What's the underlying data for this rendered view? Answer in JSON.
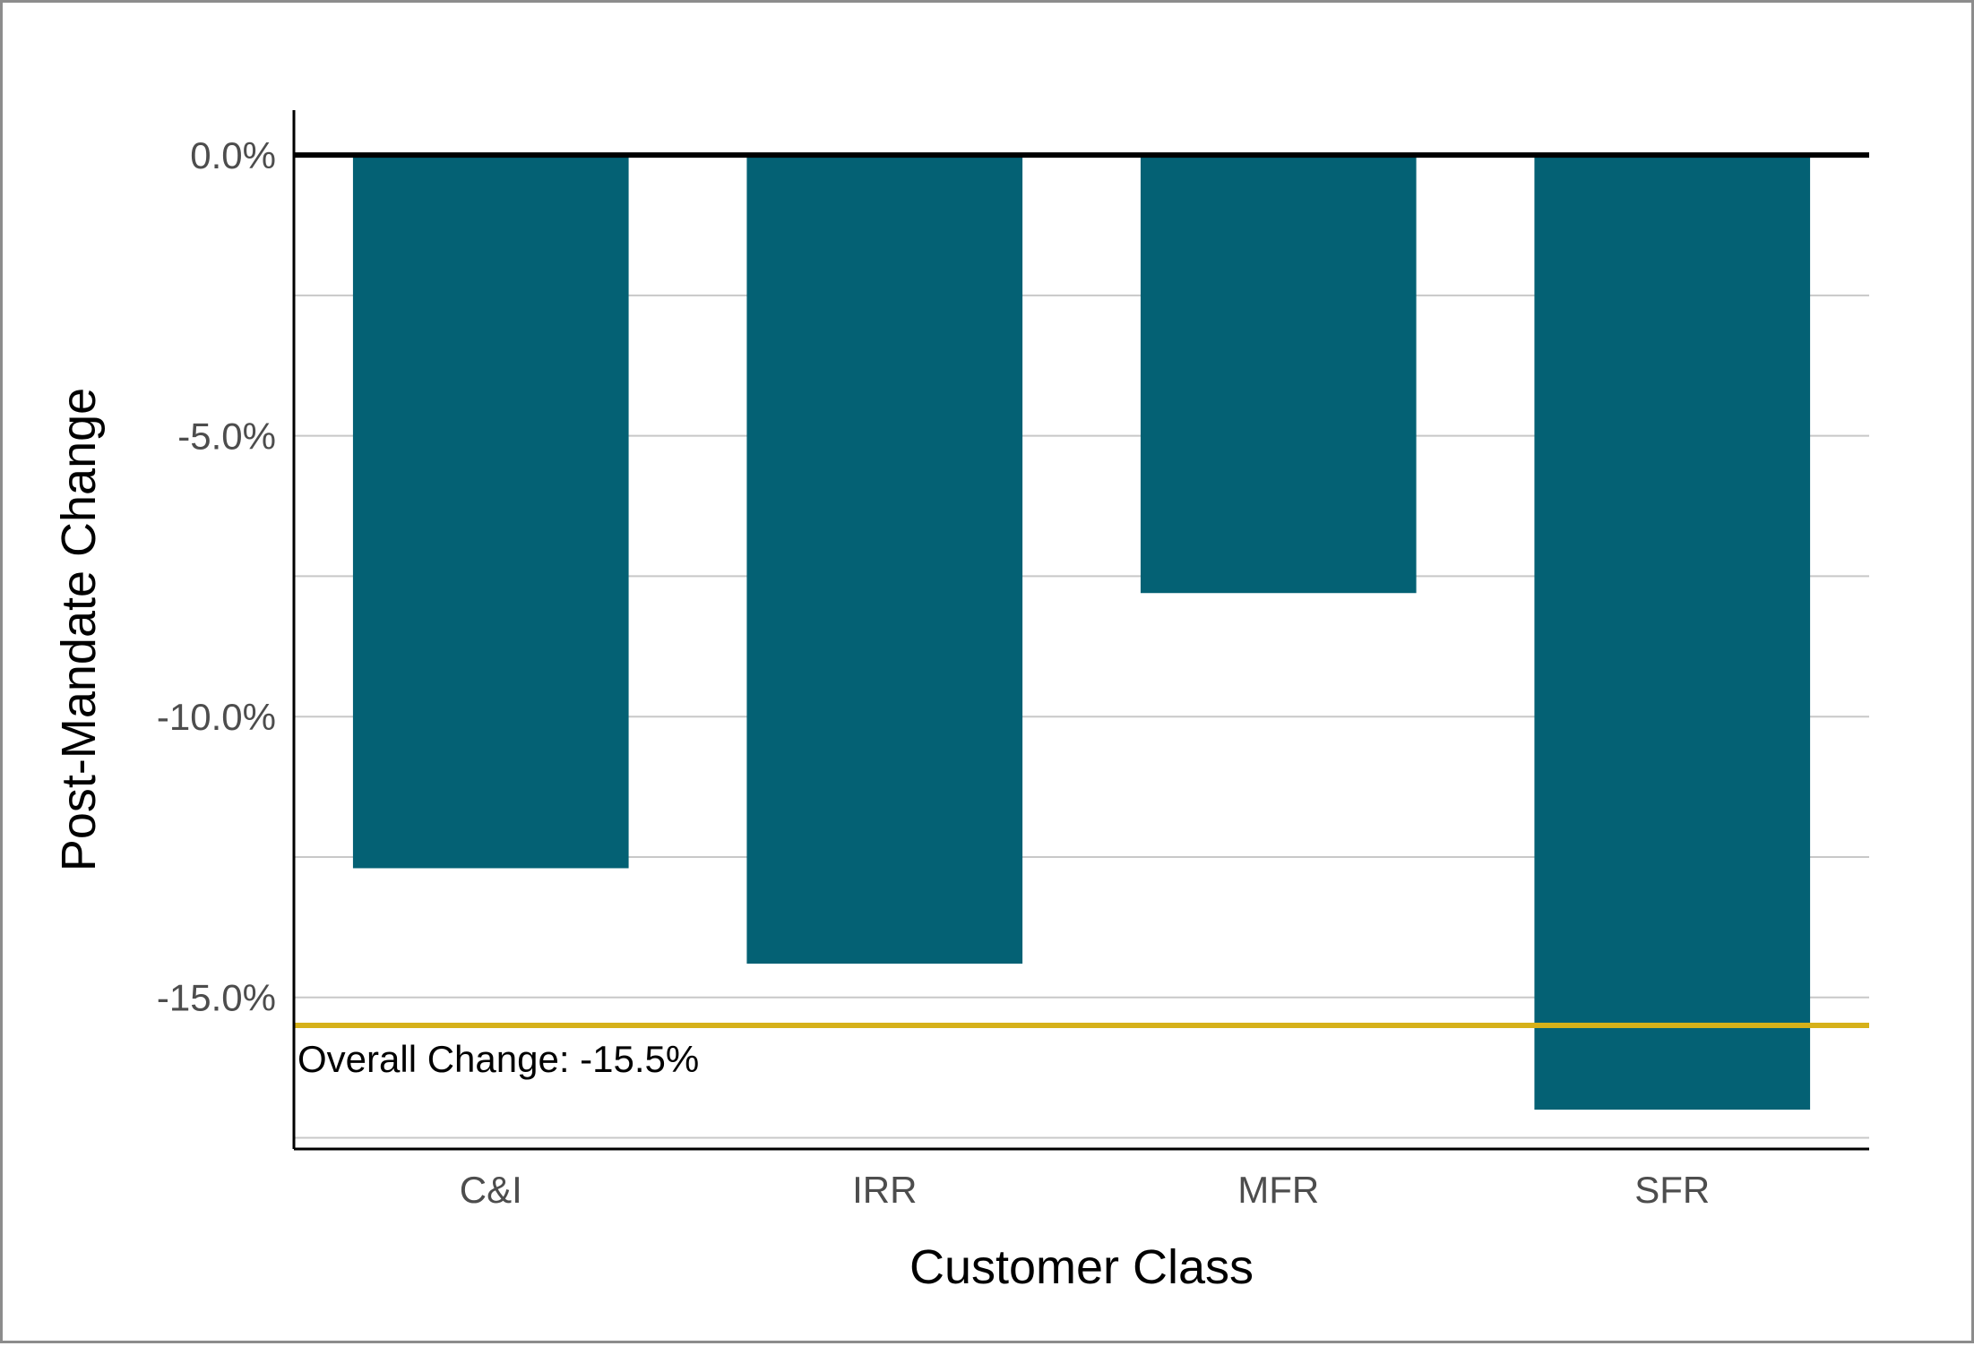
{
  "chart_data": {
    "type": "bar",
    "title": "",
    "xlabel": "Customer Class",
    "ylabel": "Post-Mandate Change",
    "categories": [
      "C&I",
      "IRR",
      "MFR",
      "SFR"
    ],
    "values": [
      -12.7,
      -14.4,
      -7.8,
      -17.0
    ],
    "ylim": [
      -17.7,
      0.8
    ],
    "yticks": [
      0,
      -5,
      -10,
      -15
    ],
    "ytick_labels": [
      "0.0%",
      "-5.0%",
      "-10.0%",
      "-15.0%"
    ],
    "minor_gridlines": [
      -2.5,
      -7.5,
      -12.5,
      -17.5
    ],
    "grid": true,
    "legend": "none",
    "bar_color": "#046174",
    "reference_line": {
      "value": -15.5,
      "label": "Overall Change: -15.5%",
      "color": "#d6b11a"
    },
    "zero_line_color": "#000000"
  }
}
